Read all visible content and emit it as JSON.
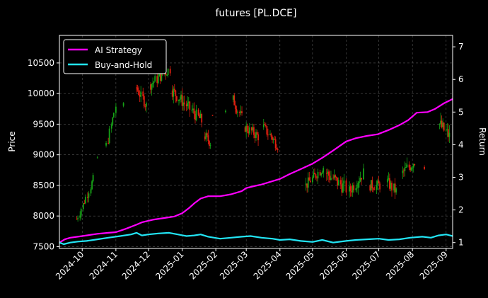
{
  "chart_data": {
    "type": "line",
    "title": "futures [PL.DCE]",
    "ylabel_left": "Price",
    "ylabel_right": "Return",
    "ylim_left": [
      7470,
      10950
    ],
    "ylim_right": [
      0.82,
      7.35
    ],
    "y_ticks_left": [
      "7500",
      "8000",
      "8500",
      "9000",
      "9500",
      "10000",
      "10500"
    ],
    "y_ticks_right": [
      "1",
      "2",
      "3",
      "4",
      "5",
      "6",
      "7"
    ],
    "x_ticks": [
      "2024-10",
      "2024-11",
      "2024-12",
      "2025-01",
      "2025-02",
      "2025-03",
      "2025-04",
      "2025-05",
      "2025-06",
      "2025-07",
      "2025-08",
      "2025-09"
    ],
    "x_range": [
      "2024-09-10",
      "2025-09-07"
    ],
    "grid": true,
    "legend_position": "top-left",
    "colors": {
      "ai": "#ff00ff",
      "bh": "#22e5f5",
      "up": "#16a316",
      "down": "#e02010",
      "grid": "#555555"
    },
    "series": [
      {
        "name": "AI Strategy",
        "axis": "right",
        "x": [
          "2024-09-10",
          "2024-09-15",
          "2024-09-20",
          "2024-09-27",
          "2024-10-05",
          "2024-10-15",
          "2024-10-25",
          "2024-11-01",
          "2024-11-10",
          "2024-11-20",
          "2024-11-25",
          "2024-12-05",
          "2024-12-15",
          "2024-12-25",
          "2025-01-01",
          "2025-01-07",
          "2025-01-12",
          "2025-01-18",
          "2025-01-25",
          "2025-02-05",
          "2025-02-15",
          "2025-02-25",
          "2025-03-01",
          "2025-03-08",
          "2025-03-15",
          "2025-03-22",
          "2025-04-01",
          "2025-04-10",
          "2025-04-20",
          "2025-05-01",
          "2025-05-10",
          "2025-05-20",
          "2025-06-01",
          "2025-06-10",
          "2025-06-20",
          "2025-06-30",
          "2025-07-10",
          "2025-07-20",
          "2025-07-28",
          "2025-08-05",
          "2025-08-15",
          "2025-08-22",
          "2025-08-30",
          "2025-09-07"
        ],
        "values": [
          1.0,
          1.1,
          1.15,
          1.18,
          1.22,
          1.27,
          1.3,
          1.32,
          1.42,
          1.55,
          1.62,
          1.7,
          1.75,
          1.8,
          1.9,
          2.05,
          2.2,
          2.35,
          2.42,
          2.42,
          2.48,
          2.58,
          2.67,
          2.73,
          2.78,
          2.85,
          2.95,
          3.1,
          3.25,
          3.42,
          3.6,
          3.82,
          4.1,
          4.2,
          4.27,
          4.32,
          4.45,
          4.6,
          4.75,
          4.98,
          5.0,
          5.1,
          5.27,
          5.4
        ]
      },
      {
        "name": "Buy-and-Hold",
        "axis": "right",
        "x": [
          "2024-09-10",
          "2024-09-14",
          "2024-09-20",
          "2024-09-27",
          "2024-10-05",
          "2024-10-15",
          "2024-10-25",
          "2024-11-05",
          "2024-11-15",
          "2024-11-20",
          "2024-11-25",
          "2024-12-01",
          "2024-12-10",
          "2024-12-20",
          "2024-12-28",
          "2025-01-05",
          "2025-01-12",
          "2025-01-18",
          "2025-01-25",
          "2025-02-05",
          "2025-02-15",
          "2025-02-25",
          "2025-03-05",
          "2025-03-15",
          "2025-03-25",
          "2025-04-01",
          "2025-04-10",
          "2025-04-20",
          "2025-05-01",
          "2025-05-10",
          "2025-05-20",
          "2025-06-01",
          "2025-06-10",
          "2025-06-20",
          "2025-07-01",
          "2025-07-10",
          "2025-07-20",
          "2025-07-30",
          "2025-08-10",
          "2025-08-18",
          "2025-08-25",
          "2025-09-01",
          "2025-09-07"
        ],
        "values": [
          1.0,
          0.95,
          1.0,
          1.03,
          1.05,
          1.1,
          1.15,
          1.2,
          1.25,
          1.3,
          1.22,
          1.25,
          1.28,
          1.3,
          1.25,
          1.2,
          1.22,
          1.25,
          1.18,
          1.12,
          1.15,
          1.18,
          1.2,
          1.15,
          1.12,
          1.08,
          1.1,
          1.05,
          1.02,
          1.08,
          1.0,
          1.05,
          1.08,
          1.1,
          1.12,
          1.08,
          1.1,
          1.15,
          1.18,
          1.15,
          1.22,
          1.25,
          1.2
        ]
      }
    ],
    "ohlc_segments": [
      {
        "start": "2024-09-26",
        "open": 7950,
        "drift": [
          7950,
          8600
        ],
        "vol": 90,
        "days": [
          0,
          1,
          3,
          4,
          6,
          7,
          8,
          10,
          11,
          13,
          14,
          15
        ]
      },
      {
        "start": "2024-10-15",
        "open": 8950,
        "drift": [
          8950,
          8950
        ],
        "vol": 80,
        "days": [
          0
        ]
      },
      {
        "start": "2024-10-23",
        "open": 9150,
        "drift": [
          9150,
          9800
        ],
        "vol": 100,
        "days": [
          0,
          2,
          3,
          5,
          6,
          7,
          9
        ]
      },
      {
        "start": "2024-11-08",
        "open": 9800,
        "drift": [
          9800,
          9850
        ],
        "vol": 60,
        "days": [
          0
        ]
      },
      {
        "start": "2024-11-20",
        "open": 10100,
        "drift": [
          10100,
          9800
        ],
        "vol": 110,
        "days": [
          0,
          1,
          2,
          3,
          4,
          6,
          7,
          8,
          9
        ]
      },
      {
        "start": "2024-12-03",
        "open": 10150,
        "drift": [
          10150,
          10400
        ],
        "vol": 110,
        "days": [
          0,
          1,
          2,
          3,
          4,
          6,
          7,
          8,
          9,
          10,
          11,
          13,
          14,
          15,
          16,
          18
        ]
      },
      {
        "start": "2024-12-23",
        "open": 10050,
        "drift": [
          10050,
          9550
        ],
        "vol": 130,
        "days": [
          0,
          1,
          2,
          3,
          4,
          6,
          7,
          8,
          9,
          10,
          11,
          13,
          14,
          15,
          16,
          18,
          19,
          20,
          21,
          22,
          24,
          25,
          26,
          27
        ]
      },
      {
        "start": "2025-01-22",
        "open": 9300,
        "drift": [
          9300,
          9200
        ],
        "vol": 110,
        "days": [
          0,
          1,
          2,
          3,
          4,
          5
        ]
      },
      {
        "start": "2025-01-29",
        "open": 9650,
        "drift": [
          9650,
          9700
        ],
        "vol": 50,
        "days": [
          0
        ]
      },
      {
        "start": "2025-02-10",
        "open": 9700,
        "drift": [
          9700,
          9650
        ],
        "vol": 50,
        "days": [
          0
        ]
      },
      {
        "start": "2025-02-17",
        "open": 9900,
        "drift": [
          9900,
          9600
        ],
        "vol": 110,
        "days": [
          0,
          1,
          2,
          3,
          4,
          6,
          7,
          8
        ]
      },
      {
        "start": "2025-02-28",
        "open": 9450,
        "drift": [
          9450,
          9300
        ],
        "vol": 110,
        "days": [
          0,
          1,
          2,
          3,
          4,
          6,
          7,
          8,
          9,
          10,
          11,
          12
        ]
      },
      {
        "start": "2025-03-17",
        "open": 9450,
        "drift": [
          9450,
          9150
        ],
        "vol": 110,
        "days": [
          0,
          1,
          2,
          3,
          4,
          6,
          7,
          8,
          9,
          10,
          11,
          12,
          13
        ]
      },
      {
        "start": "2025-04-25",
        "open": 8500,
        "drift": [
          8500,
          8800
        ],
        "vol": 110,
        "days": [
          0,
          1,
          2,
          3,
          4,
          6,
          7,
          8,
          9,
          10,
          11,
          13,
          14,
          15,
          16
        ]
      },
      {
        "start": "2025-05-14",
        "open": 8700,
        "drift": [
          8700,
          8450
        ],
        "vol": 150,
        "days": [
          0,
          1,
          2,
          3,
          4,
          6,
          7,
          8,
          9,
          10,
          11,
          13,
          14,
          15,
          16,
          18
        ]
      },
      {
        "start": "2025-06-04",
        "open": 8400,
        "drift": [
          8400,
          8700
        ],
        "vol": 130,
        "days": [
          0,
          1,
          2,
          3,
          4,
          6,
          7,
          8,
          9,
          10,
          11,
          13
        ]
      },
      {
        "start": "2025-06-23",
        "open": 8500,
        "drift": [
          8500,
          8500
        ],
        "vol": 110,
        "days": [
          0,
          1,
          2,
          3,
          4,
          6,
          7,
          8,
          9
        ]
      },
      {
        "start": "2025-07-09",
        "open": 8550,
        "drift": [
          8550,
          8400
        ],
        "vol": 120,
        "days": [
          0,
          1,
          2,
          3,
          4,
          6,
          7,
          8
        ]
      },
      {
        "start": "2025-07-23",
        "open": 8700,
        "drift": [
          8700,
          8900
        ],
        "vol": 130,
        "days": [
          0,
          1,
          2,
          3,
          4,
          6,
          7,
          8,
          9,
          10,
          11
        ]
      },
      {
        "start": "2025-08-12",
        "open": 8800,
        "drift": [
          8800,
          8800
        ],
        "vol": 50,
        "days": [
          0
        ]
      },
      {
        "start": "2025-08-26",
        "open": 9500,
        "drift": [
          9500,
          9300
        ],
        "vol": 150,
        "days": [
          0,
          1,
          2,
          3,
          4,
          6,
          7,
          8,
          9
        ]
      }
    ]
  }
}
